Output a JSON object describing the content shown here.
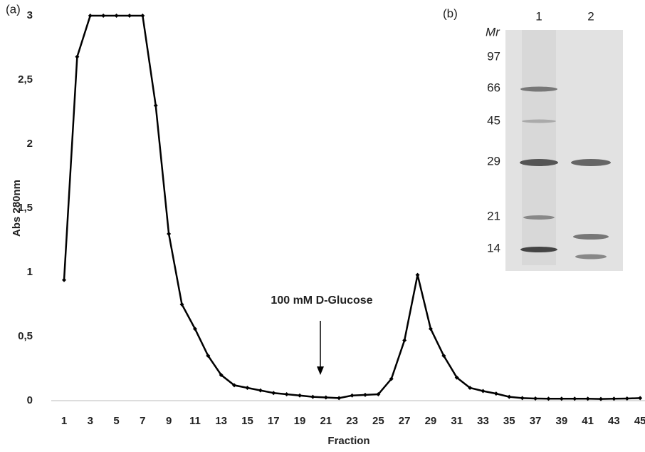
{
  "chart_data": {
    "type": "line",
    "panel_label": "(a)",
    "x_label": "Fraction",
    "y_label": "Abs 280nm",
    "annotation": "100 mM D-Glucose",
    "color": "#000000",
    "grid": false,
    "x": [
      1,
      2,
      3,
      4,
      5,
      6,
      7,
      8,
      9,
      10,
      11,
      12,
      13,
      14,
      15,
      16,
      17,
      18,
      19,
      20,
      21,
      22,
      23,
      24,
      25,
      26,
      27,
      28,
      29,
      30,
      31,
      32,
      33,
      34,
      35,
      36,
      37,
      38,
      39,
      40,
      41,
      42,
      43,
      44,
      45
    ],
    "values": [
      0.94,
      2.68,
      3,
      3,
      3,
      3,
      3,
      2.3,
      1.3,
      0.75,
      0.56,
      0.35,
      0.2,
      0.12,
      0.1,
      0.08,
      0.06,
      0.05,
      0.04,
      0.03,
      0.025,
      0.02,
      0.04,
      0.045,
      0.05,
      0.17,
      0.47,
      0.98,
      0.56,
      0.35,
      0.18,
      0.1,
      0.075,
      0.055,
      0.03,
      0.02,
      0.017,
      0.015,
      0.015,
      0.015,
      0.015,
      0.013,
      0.015,
      0.017,
      0.02
    ],
    "xlim": [
      0.5,
      45.3
    ],
    "xticks": [
      1,
      3,
      5,
      7,
      9,
      11,
      13,
      15,
      17,
      19,
      21,
      23,
      25,
      27,
      29,
      31,
      33,
      35,
      37,
      39,
      41,
      43,
      45
    ],
    "ylim": [
      0,
      3
    ],
    "yticks": [
      0,
      {
        "value": 0.5,
        "label": "0,5"
      },
      1,
      {
        "value": 1.5,
        "label": "1,5"
      },
      2,
      {
        "value": 2.5,
        "label": "2,5"
      },
      3
    ]
  },
  "gel": {
    "panel_label": "(b)",
    "mr_label": "Mr",
    "lanes": [
      "1",
      "2"
    ],
    "markers": [
      97,
      66,
      45,
      29,
      21,
      14
    ]
  }
}
